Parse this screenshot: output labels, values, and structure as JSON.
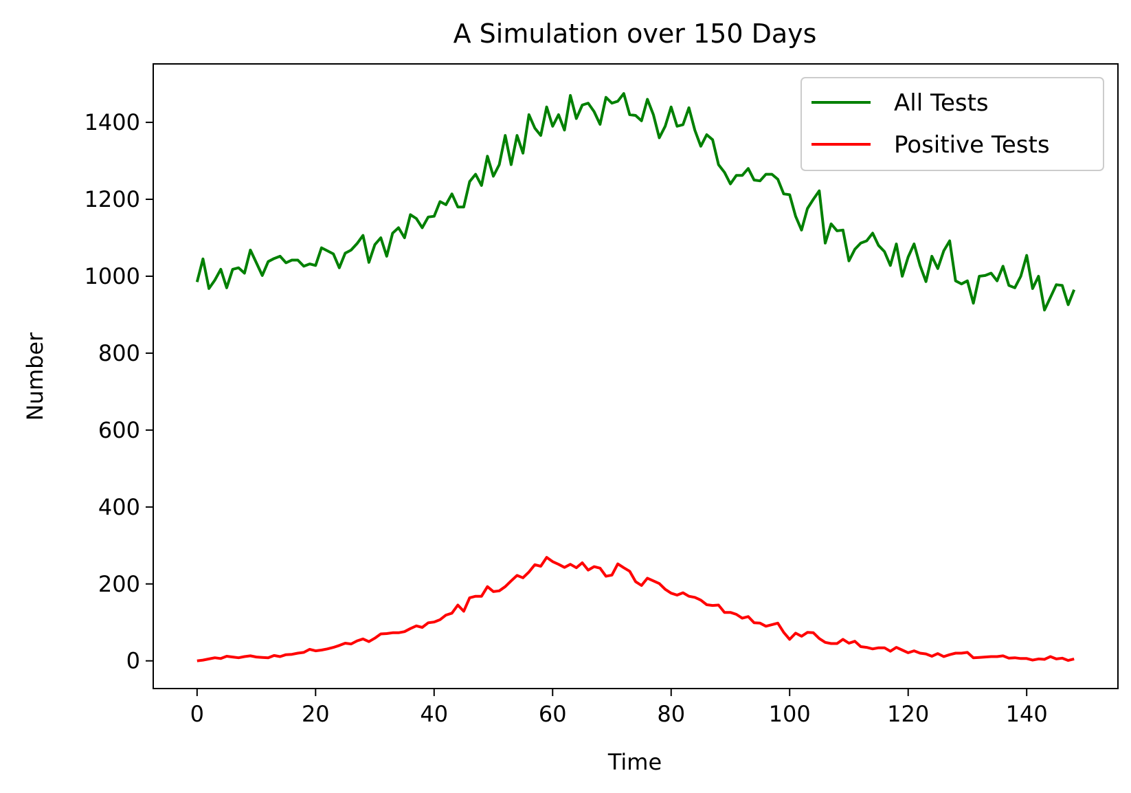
{
  "chart_data": {
    "type": "line",
    "title": "A Simulation over 150 Days",
    "xlabel": "Time",
    "ylabel": "Number",
    "xlim": [
      -7.4,
      155.4
    ],
    "ylim": [
      -72,
      1552
    ],
    "xticks": [
      0,
      20,
      40,
      60,
      80,
      100,
      120,
      140
    ],
    "yticks": [
      0,
      200,
      400,
      600,
      800,
      1000,
      1200,
      1400
    ],
    "grid": false,
    "legend": "top-right",
    "series": [
      {
        "name": "All Tests",
        "color": "#008000",
        "x": [
          0,
          1,
          2,
          3,
          4,
          5,
          6,
          7,
          8,
          9,
          10,
          11,
          12,
          13,
          14,
          15,
          16,
          17,
          18,
          19,
          20,
          21,
          22,
          23,
          24,
          25,
          26,
          27,
          28,
          29,
          30,
          31,
          32,
          33,
          34,
          35,
          36,
          37,
          38,
          39,
          40,
          41,
          42,
          43,
          44,
          45,
          46,
          47,
          48,
          49,
          50,
          51,
          52,
          53,
          54,
          55,
          56,
          57,
          58,
          59,
          60,
          61,
          62,
          63,
          64,
          65,
          66,
          67,
          68,
          69,
          70,
          71,
          72,
          73,
          74,
          75,
          76,
          77,
          78,
          79,
          80,
          81,
          82,
          83,
          84,
          85,
          86,
          87,
          88,
          89,
          90,
          91,
          92,
          93,
          94,
          95,
          96,
          97,
          98,
          99,
          100,
          101,
          102,
          103,
          104,
          105,
          106,
          107,
          108,
          109,
          110,
          111,
          112,
          113,
          114,
          115,
          116,
          117,
          118,
          119,
          120,
          121,
          122,
          123,
          124,
          125,
          126,
          127,
          128,
          129,
          130,
          131,
          132,
          133,
          134,
          135,
          136,
          137,
          138,
          139,
          140,
          141,
          142,
          143,
          144,
          145,
          146,
          147,
          148
        ],
        "values": [
          985,
          1045,
          968,
          990,
          1018,
          970,
          1018,
          1022,
          1008,
          1068,
          1035,
          1002,
          1038,
          1046,
          1052,
          1035,
          1042,
          1042,
          1026,
          1032,
          1028,
          1074,
          1066,
          1058,
          1022,
          1060,
          1068,
          1085,
          1106,
          1036,
          1082,
          1100,
          1052,
          1112,
          1126,
          1100,
          1160,
          1150,
          1126,
          1154,
          1156,
          1194,
          1186,
          1214,
          1180,
          1180,
          1246,
          1265,
          1236,
          1312,
          1260,
          1290,
          1366,
          1290,
          1366,
          1320,
          1420,
          1385,
          1366,
          1440,
          1390,
          1420,
          1380,
          1470,
          1410,
          1445,
          1450,
          1428,
          1395,
          1465,
          1450,
          1455,
          1475,
          1420,
          1418,
          1404,
          1460,
          1420,
          1360,
          1390,
          1440,
          1390,
          1394,
          1438,
          1380,
          1338,
          1368,
          1355,
          1290,
          1270,
          1240,
          1262,
          1262,
          1280,
          1250,
          1248,
          1265,
          1265,
          1252,
          1214,
          1212,
          1156,
          1120,
          1176,
          1200,
          1222,
          1086,
          1136,
          1118,
          1120,
          1040,
          1070,
          1086,
          1092,
          1112,
          1080,
          1064,
          1028,
          1084,
          1000,
          1050,
          1084,
          1028,
          986,
          1052,
          1020,
          1066,
          1092,
          988,
          980,
          988,
          930,
          1000,
          1002,
          1008,
          988,
          1026,
          976,
          970,
          1000,
          1054,
          968,
          1000,
          912,
          945,
          978,
          976,
          926,
          965
        ]
      },
      {
        "name": "Positive Tests",
        "color": "#ff0000",
        "x": [
          0,
          1,
          2,
          3,
          4,
          5,
          6,
          7,
          8,
          9,
          10,
          11,
          12,
          13,
          14,
          15,
          16,
          17,
          18,
          19,
          20,
          21,
          22,
          23,
          24,
          25,
          26,
          27,
          28,
          29,
          30,
          31,
          32,
          33,
          34,
          35,
          36,
          37,
          38,
          39,
          40,
          41,
          42,
          43,
          44,
          45,
          46,
          47,
          48,
          49,
          50,
          51,
          52,
          53,
          54,
          55,
          56,
          57,
          58,
          59,
          60,
          61,
          62,
          63,
          64,
          65,
          66,
          67,
          68,
          69,
          70,
          71,
          72,
          73,
          74,
          75,
          76,
          77,
          78,
          79,
          80,
          81,
          82,
          83,
          84,
          85,
          86,
          87,
          88,
          89,
          90,
          91,
          92,
          93,
          94,
          95,
          96,
          97,
          98,
          99,
          100,
          101,
          102,
          103,
          104,
          105,
          106,
          107,
          108,
          109,
          110,
          111,
          112,
          113,
          114,
          115,
          116,
          117,
          118,
          119,
          120,
          121,
          122,
          123,
          124,
          125,
          126,
          127,
          128,
          129,
          130,
          131,
          132,
          133,
          134,
          135,
          136,
          137,
          138,
          139,
          140,
          141,
          142,
          143,
          144,
          145,
          146,
          147,
          148
        ],
        "values": [
          0,
          2,
          5,
          8,
          6,
          12,
          10,
          8,
          11,
          13,
          10,
          9,
          8,
          14,
          11,
          16,
          17,
          20,
          22,
          30,
          26,
          28,
          31,
          35,
          40,
          46,
          44,
          52,
          57,
          50,
          59,
          70,
          71,
          73,
          73,
          76,
          84,
          91,
          87,
          99,
          101,
          107,
          119,
          124,
          145,
          129,
          164,
          168,
          168,
          193,
          180,
          182,
          193,
          208,
          222,
          216,
          231,
          250,
          246,
          269,
          258,
          251,
          243,
          251,
          242,
          255,
          236,
          245,
          241,
          220,
          223,
          252,
          242,
          233,
          206,
          196,
          215,
          208,
          201,
          186,
          176,
          171,
          177,
          168,
          165,
          158,
          146,
          144,
          145,
          126,
          126,
          121,
          111,
          115,
          99,
          98,
          90,
          94,
          98,
          74,
          56,
          72,
          64,
          74,
          73,
          58,
          48,
          45,
          45,
          56,
          46,
          51,
          37,
          35,
          31,
          34,
          34,
          25,
          35,
          28,
          21,
          26,
          20,
          18,
          12,
          19,
          11,
          16,
          20,
          20,
          22,
          8,
          9,
          10,
          11,
          11,
          13,
          7,
          8,
          6,
          6,
          2,
          5,
          4,
          11,
          5,
          7,
          1,
          5
        ]
      }
    ]
  }
}
